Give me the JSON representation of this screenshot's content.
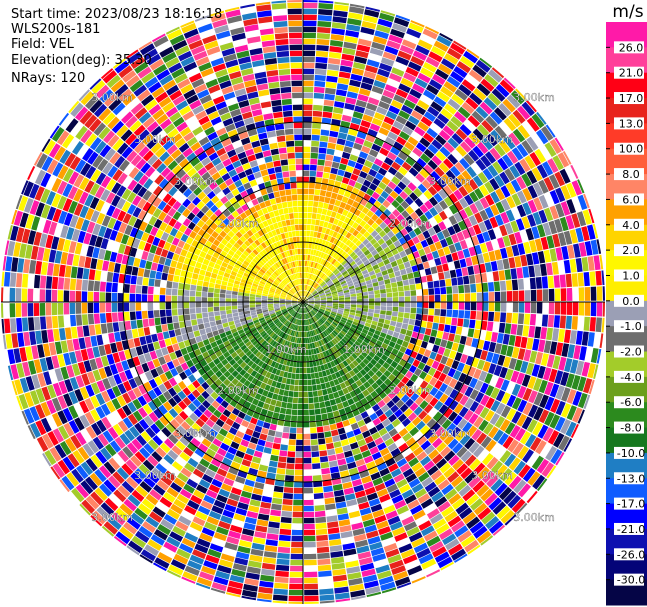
{
  "header": {
    "start_time": "Start time: 2023/08/23 18:16:18",
    "instrument": "WLS200s-181",
    "field": "Field: VEL",
    "elevation": "Elevation(deg): 35.30",
    "nrays": "NRays: 120"
  },
  "range_labels": {
    "r1": "1.00km",
    "r2": "2.00km",
    "r3": "3.00km"
  },
  "colorbar": {
    "unit": "m/s",
    "ticks": [
      "26.0",
      "21.0",
      "17.0",
      "13.0",
      "10.0",
      "8.0",
      "6.0",
      "4.0",
      "2.0",
      "1.0",
      "0.0",
      "-1.0",
      "-2.0",
      "-4.0",
      "-6.0",
      "-8.0",
      "-10.0",
      "-13.0",
      "-17.0",
      "-21.0",
      "-26.0",
      "-30.0"
    ],
    "colors": [
      "#ff1aa8",
      "#ff3f9a",
      "#ff0015",
      "#e8231c",
      "#ff3b28",
      "#ff5e3a",
      "#ff8566",
      "#ffa100",
      "#ffd400",
      "#fff700",
      "#ffee00",
      "#9b9fb5",
      "#6e6e6e",
      "#a3cc2a",
      "#6c9f1c",
      "#2c8a1e",
      "#16781e",
      "#1f7ec4",
      "#0f5cff",
      "#0000ff",
      "#0d10b0",
      "#040478",
      "#050546"
    ]
  }
}
